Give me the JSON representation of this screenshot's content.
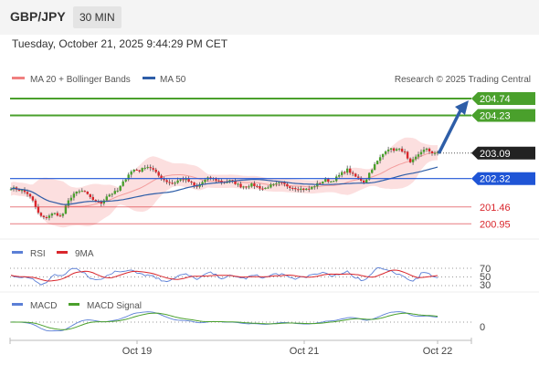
{
  "header": {
    "pair": "GBP/JPY",
    "timeframe": "30 MIN",
    "timestamp": "Tuesday, October 21, 2025 9:44:29 PM CET"
  },
  "legend": {
    "bb": "MA 20 + Bollinger Bands",
    "ma50": "MA 50",
    "credit": "Research © 2025 Trading Central"
  },
  "colors": {
    "up": "#4aa02c",
    "upline": "#4aa02c",
    "res": "#4aa02c",
    "sup": "#d9262c",
    "pivot": "#1f55d6",
    "bb": "#f08080",
    "bbFill": "#fcdcdc",
    "ma50": "#2e5ea8",
    "arrow": "#2e5ea8",
    "last": "#222222",
    "rsi": "#5b7fd6",
    "rsi9": "#d9262c",
    "macd": "#5b7fd6",
    "signal": "#4aa02c"
  },
  "chart_data": [
    {
      "type": "candlestick",
      "title": "GBP/JPY 30 MIN",
      "ylim": [
        200.6,
        205.1
      ],
      "x_ticks": [
        "Oct 19",
        "Oct 21",
        "Oct 22"
      ],
      "last_price": 203.09,
      "levels": [
        {
          "value": 204.74,
          "label": "204.74",
          "kind": "resistance"
        },
        {
          "value": 204.23,
          "label": "204.23",
          "kind": "resistance"
        },
        {
          "value": 202.32,
          "label": "202.32",
          "kind": "pivot"
        },
        {
          "value": 201.46,
          "label": "201.46",
          "kind": "support"
        },
        {
          "value": 200.95,
          "label": "200.95",
          "kind": "support"
        }
      ],
      "price_path": [
        202.04,
        202.0,
        201.95,
        201.86,
        201.61,
        201.22,
        201.11,
        201.23,
        201.27,
        201.15,
        201.57,
        201.85,
        201.91,
        201.95,
        201.74,
        201.65,
        201.56,
        201.79,
        201.87,
        201.95,
        202.21,
        202.47,
        202.6,
        202.55,
        202.7,
        202.64,
        202.45,
        202.31,
        202.21,
        202.18,
        202.29,
        202.3,
        202.2,
        202.04,
        202.2,
        202.32,
        202.32,
        202.25,
        202.2,
        202.25,
        202.18,
        202.08,
        202.1,
        202.14,
        202.07,
        202.0,
        202.1,
        202.13,
        202.19,
        202.11,
        202.06,
        202.02,
        202.0,
        201.99,
        202.1,
        202.19,
        202.28,
        202.23,
        202.35,
        202.49,
        202.6,
        202.41,
        202.32,
        202.2,
        202.55,
        202.78,
        203.0,
        203.24,
        203.19,
        203.2,
        203.16,
        202.75,
        202.94,
        203.14,
        203.2,
        203.11,
        203.09
      ],
      "candle_count": 157
    },
    {
      "type": "line",
      "title": "RSI",
      "series": [
        {
          "name": "RSI"
        },
        {
          "name": "9MA"
        }
      ],
      "levels": [
        70,
        50,
        30
      ]
    },
    {
      "type": "line",
      "title": "MACD",
      "series": [
        {
          "name": "MACD"
        },
        {
          "name": "MACD Signal"
        }
      ],
      "levels": [
        0
      ]
    }
  ]
}
